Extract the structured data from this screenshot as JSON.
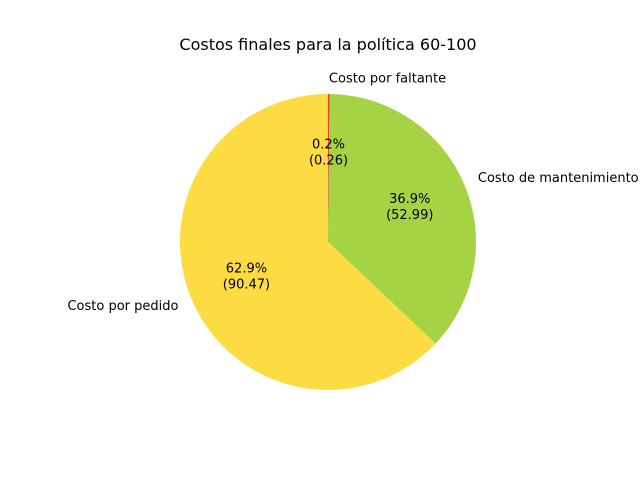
{
  "chart_data": {
    "type": "pie",
    "title": "Costos finales para la política 60-100",
    "start_angle_deg": 90,
    "direction": "clockwise",
    "slices": [
      {
        "label": "Costo por faltante",
        "value": 0.26,
        "percent_text": "0.2%",
        "value_text": "(0.26)",
        "color": "#e8412c"
      },
      {
        "label": "Costo de mantenimiento",
        "value": 52.99,
        "percent_text": "36.9%",
        "value_text": "(52.99)",
        "color": "#a6d344"
      },
      {
        "label": "Costo por pedido",
        "value": 90.47,
        "percent_text": "62.9%",
        "value_text": "(90.47)",
        "color": "#fddc43"
      }
    ]
  }
}
